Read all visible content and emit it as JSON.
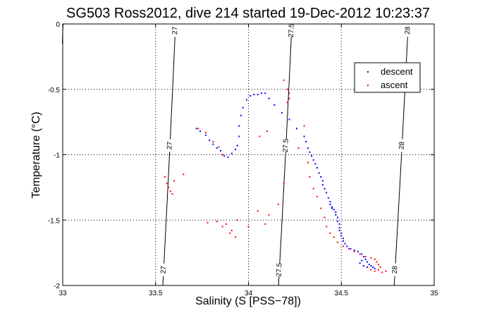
{
  "chart_data": {
    "type": "scatter",
    "title": "SG503 Ross2012, dive 214 started 19-Dec-2012 10:23:37",
    "xlabel": "Salinity (S [PSS−78])",
    "ylabel": "Temperature (°C)",
    "xlim": [
      33,
      35
    ],
    "ylim": [
      -2,
      0
    ],
    "x_ticks": [
      "33",
      "33.5",
      "34",
      "34.5",
      "35"
    ],
    "y_ticks": [
      "0",
      "-0.5",
      "-1",
      "-1.5",
      "-2"
    ],
    "grid": true,
    "legend_placement": "top-right",
    "density_contours": [
      {
        "value": 27,
        "label": "27",
        "points": [
          [
            33.5389,
            -2.0
          ],
          [
            33.5571,
            -1.5
          ],
          [
            33.5748,
            -1.0
          ],
          [
            33.5916,
            -0.5
          ],
          [
            33.6076,
            0.0
          ]
        ]
      },
      {
        "value": 27.5,
        "label": "27.5",
        "points": [
          [
            34.1618,
            -2.0
          ],
          [
            34.1809,
            -1.5
          ],
          [
            34.1995,
            -1.0
          ],
          [
            34.2171,
            -0.5
          ],
          [
            34.234,
            0.0
          ]
        ]
      },
      {
        "value": 28,
        "label": "28",
        "points": [
          [
            34.7847,
            -2.0
          ],
          [
            34.8047,
            -1.5
          ],
          [
            34.8242,
            -1.0
          ],
          [
            34.8427,
            -0.5
          ],
          [
            34.8604,
            0.0
          ]
        ]
      }
    ],
    "extra_contour_segment": {
      "points": [
        [
          32.998,
          -0.15
        ],
        [
          33.0,
          -0.06
        ],
        [
          33.002,
          0.0
        ]
      ]
    },
    "series": [
      {
        "name": "descent",
        "color": "#0000ff",
        "points": [
          [
            34.05,
            -0.54
          ],
          [
            34.07,
            -0.53
          ],
          [
            34.09,
            -0.53
          ],
          [
            34.03,
            -0.54
          ],
          [
            34.01,
            -0.55
          ],
          [
            33.99,
            -0.58
          ],
          [
            33.97,
            -0.64
          ],
          [
            33.96,
            -0.7
          ],
          [
            33.95,
            -0.78
          ],
          [
            33.95,
            -0.86
          ],
          [
            33.94,
            -0.93
          ],
          [
            33.93,
            -0.96
          ],
          [
            33.91,
            -0.99
          ],
          [
            33.89,
            -1.02
          ],
          [
            33.87,
            -1.01
          ],
          [
            33.85,
            -0.97
          ],
          [
            33.83,
            -0.95
          ],
          [
            33.81,
            -0.92
          ],
          [
            33.79,
            -0.89
          ],
          [
            33.77,
            -0.85
          ],
          [
            33.74,
            -0.82
          ],
          [
            33.72,
            -0.8
          ],
          [
            34.11,
            -0.57
          ],
          [
            34.14,
            -0.62
          ],
          [
            34.18,
            -0.68
          ],
          [
            34.22,
            -0.73
          ],
          [
            34.26,
            -0.8
          ],
          [
            34.3,
            -0.86
          ],
          [
            34.31,
            -0.9
          ],
          [
            34.32,
            -0.95
          ],
          [
            34.33,
            -0.98
          ],
          [
            34.34,
            -1.01
          ],
          [
            34.35,
            -1.04
          ],
          [
            34.36,
            -1.07
          ],
          [
            34.37,
            -1.1
          ],
          [
            34.38,
            -1.14
          ],
          [
            34.39,
            -1.17
          ],
          [
            34.4,
            -1.2
          ],
          [
            34.4,
            -1.23
          ],
          [
            34.41,
            -1.26
          ],
          [
            34.42,
            -1.29
          ],
          [
            34.43,
            -1.33
          ],
          [
            34.44,
            -1.36
          ],
          [
            34.44,
            -1.38
          ],
          [
            34.45,
            -1.4
          ],
          [
            34.45,
            -1.41
          ],
          [
            34.46,
            -1.42
          ],
          [
            34.47,
            -1.44
          ],
          [
            34.47,
            -1.46
          ],
          [
            34.48,
            -1.48
          ],
          [
            34.48,
            -1.51
          ],
          [
            34.49,
            -1.53
          ],
          [
            34.49,
            -1.56
          ],
          [
            34.49,
            -1.58
          ],
          [
            34.5,
            -1.6
          ],
          [
            34.5,
            -1.62
          ],
          [
            34.51,
            -1.64
          ],
          [
            34.51,
            -1.66
          ],
          [
            34.52,
            -1.68
          ],
          [
            34.53,
            -1.7
          ],
          [
            34.55,
            -1.72
          ],
          [
            34.57,
            -1.73
          ],
          [
            34.59,
            -1.74
          ],
          [
            34.61,
            -1.76
          ],
          [
            34.62,
            -1.78
          ],
          [
            34.63,
            -1.8
          ],
          [
            34.64,
            -1.82
          ],
          [
            34.65,
            -1.84
          ],
          [
            34.66,
            -1.85
          ],
          [
            34.67,
            -1.86
          ],
          [
            34.68,
            -1.87
          ],
          [
            34.64,
            -1.86
          ],
          [
            34.62,
            -1.85
          ],
          [
            34.6,
            -1.83
          ],
          [
            34.61,
            -1.81
          ]
        ]
      },
      {
        "name": "ascent",
        "color": "#ff0000",
        "points": [
          [
            34.19,
            -0.43
          ],
          [
            34.21,
            -0.5
          ],
          [
            34.22,
            -0.53
          ],
          [
            34.22,
            -0.57
          ],
          [
            34.21,
            -0.6
          ],
          [
            34.1,
            -0.82
          ],
          [
            34.06,
            -0.86
          ],
          [
            34.3,
            -0.78
          ],
          [
            33.73,
            -0.8
          ],
          [
            33.77,
            -0.83
          ],
          [
            33.81,
            -0.9
          ],
          [
            33.84,
            -0.94
          ],
          [
            33.86,
            -1.0
          ],
          [
            33.6,
            -1.2
          ],
          [
            33.65,
            -1.15
          ],
          [
            33.55,
            -1.17
          ],
          [
            33.56,
            -1.22
          ],
          [
            33.57,
            -1.25
          ],
          [
            33.58,
            -1.28
          ],
          [
            33.59,
            -1.3
          ],
          [
            34.19,
            -1.22
          ],
          [
            34.16,
            -1.38
          ],
          [
            34.11,
            -1.46
          ],
          [
            34.09,
            -1.53
          ],
          [
            33.94,
            -1.5
          ],
          [
            33.88,
            -1.53
          ],
          [
            33.83,
            -1.51
          ],
          [
            33.78,
            -1.52
          ],
          [
            33.86,
            -1.55
          ],
          [
            33.91,
            -1.58
          ],
          [
            33.93,
            -1.63
          ],
          [
            33.9,
            -1.6
          ],
          [
            34.27,
            -0.95
          ],
          [
            34.32,
            -1.06
          ],
          [
            34.33,
            -1.17
          ],
          [
            34.35,
            -1.26
          ],
          [
            34.37,
            -1.32
          ],
          [
            34.39,
            -1.41
          ],
          [
            34.41,
            -1.48
          ],
          [
            34.42,
            -1.55
          ],
          [
            34.44,
            -1.6
          ],
          [
            34.46,
            -1.63
          ],
          [
            34.48,
            -1.67
          ],
          [
            34.51,
            -1.7
          ],
          [
            34.54,
            -1.72
          ],
          [
            34.57,
            -1.74
          ],
          [
            34.6,
            -1.76
          ],
          [
            34.63,
            -1.78
          ],
          [
            34.66,
            -1.79
          ],
          [
            34.68,
            -1.8
          ],
          [
            34.69,
            -1.82
          ],
          [
            34.7,
            -1.84
          ],
          [
            34.71,
            -1.86
          ],
          [
            34.7,
            -1.88
          ],
          [
            34.72,
            -1.9
          ],
          [
            34.68,
            -1.89
          ],
          [
            34.66,
            -1.88
          ],
          [
            34.74,
            -1.89
          ],
          [
            34.05,
            -1.43
          ],
          [
            34.0,
            -1.55
          ]
        ]
      }
    ]
  }
}
